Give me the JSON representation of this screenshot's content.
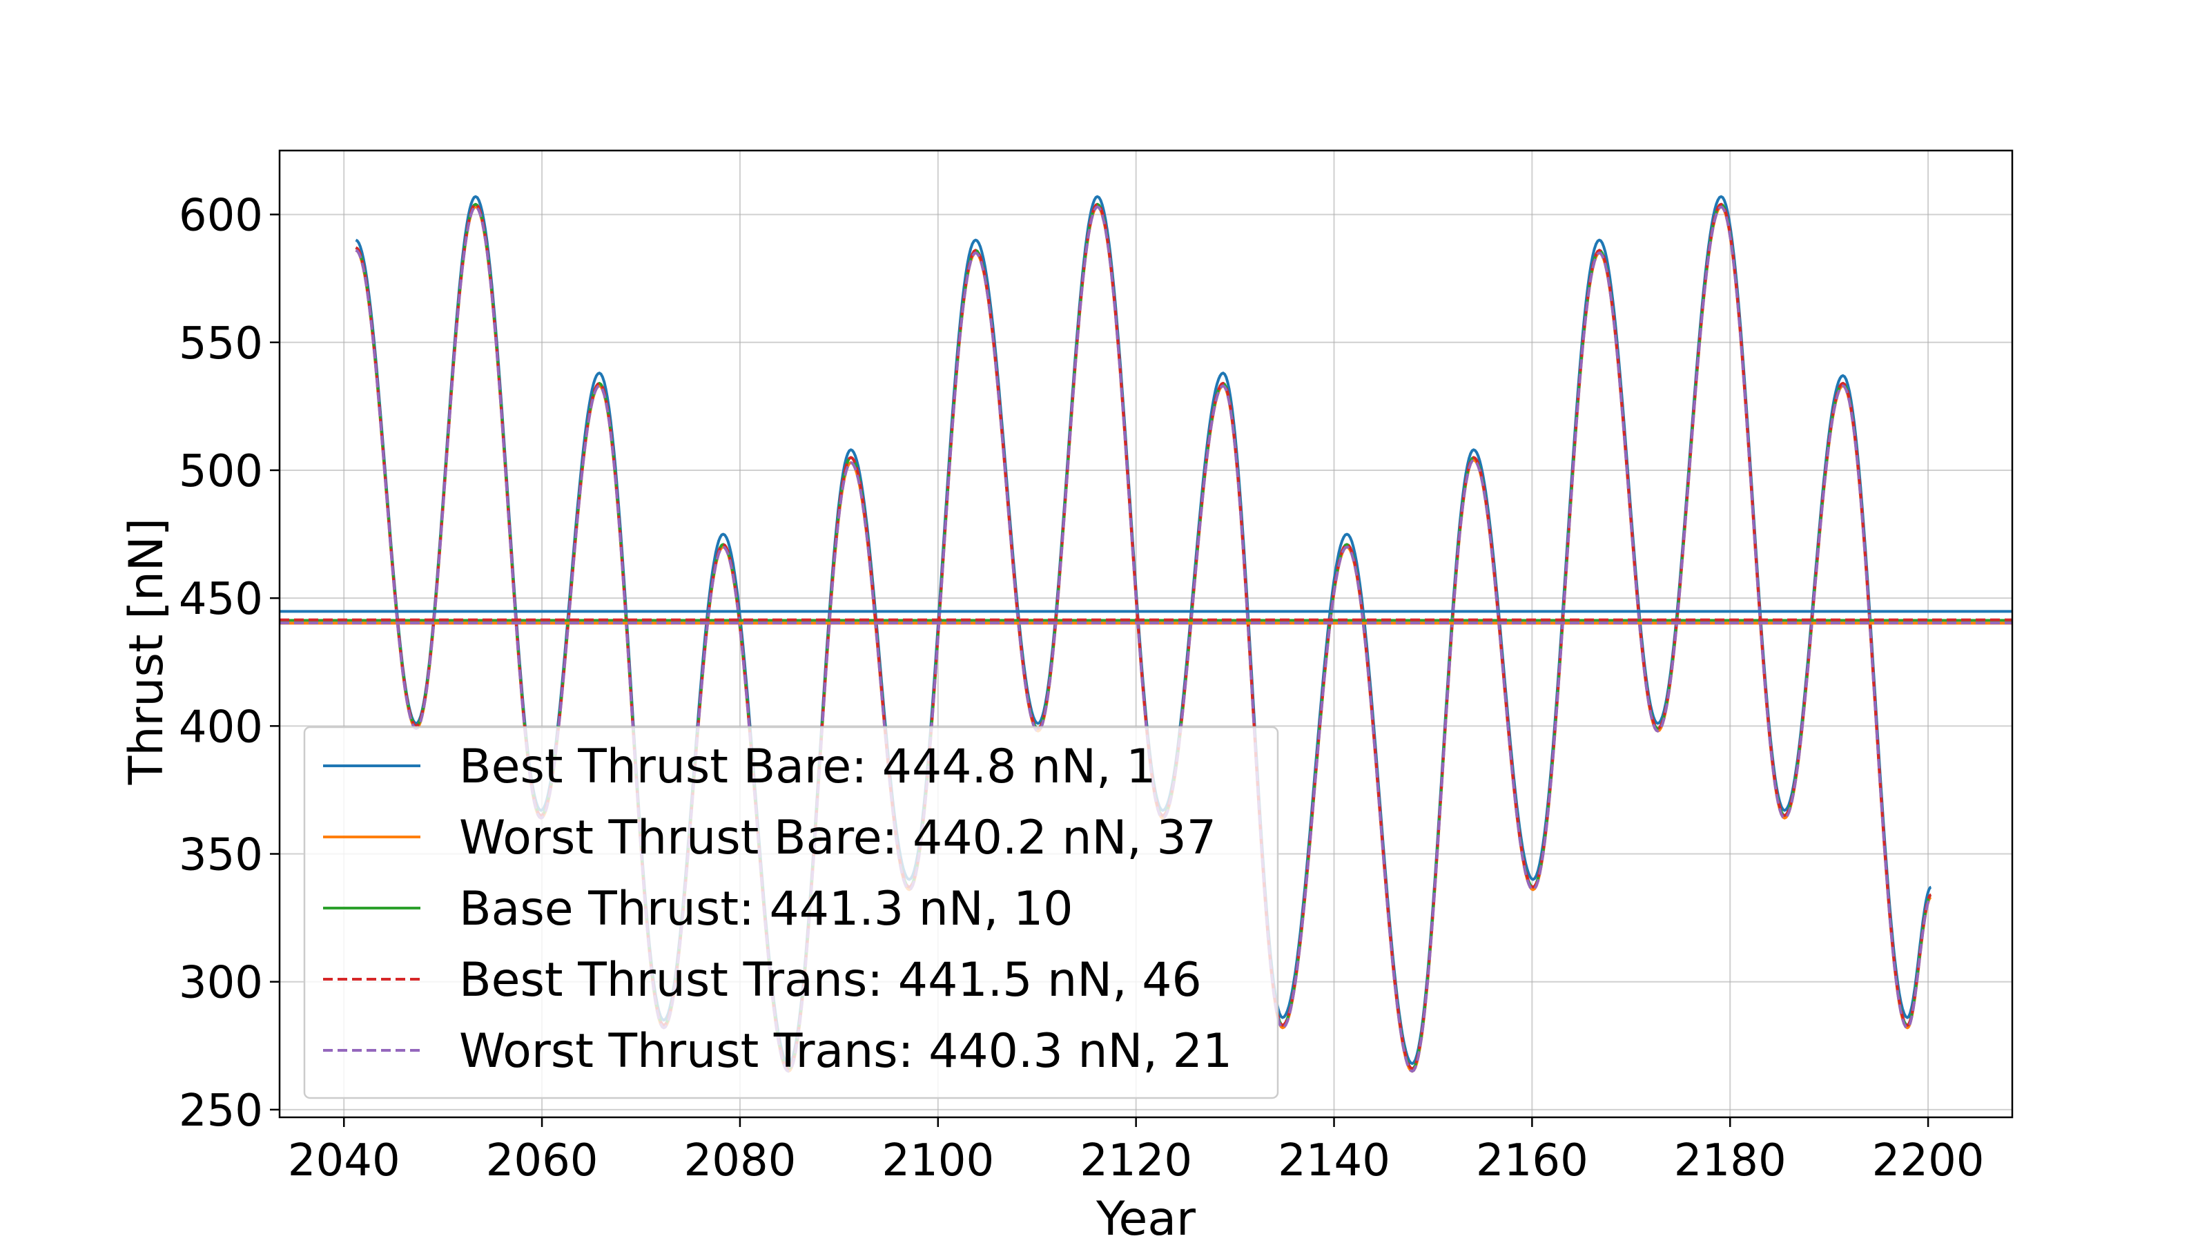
{
  "chart_data": {
    "type": "line",
    "title": "",
    "xlabel": "Year",
    "ylabel": "Thrust [nN]",
    "xlim": [
      2033.5,
      2208.5
    ],
    "ylim": [
      247,
      625
    ],
    "xticks": [
      2040,
      2060,
      2080,
      2100,
      2120,
      2140,
      2160,
      2180,
      2200
    ],
    "yticks": [
      250,
      300,
      350,
      400,
      450,
      500,
      550,
      600
    ],
    "grid": true,
    "legend_position": "lower-left",
    "colors": {
      "best_bare": "#1f77b4",
      "worst_bare": "#ff7f0e",
      "base": "#2ca02c",
      "best_trans": "#d62728",
      "worst_trans": "#9467bd"
    },
    "series": [
      {
        "name": "Best Thrust Bare: 444.8 nN, 1",
        "style": "solid",
        "color": "#1f77b4",
        "mean": 444.8,
        "scale": 1.007,
        "x": [
          2041.2,
          2047.3,
          2053.3,
          2059.9,
          2065.8,
          2072.3,
          2078.3,
          2084.9,
          2091.2,
          2097.1,
          2103.8,
          2110.1,
          2116.1,
          2122.7,
          2128.8,
          2134.8,
          2141.3,
          2147.9,
          2154.1,
          2160.1,
          2166.8,
          2172.7,
          2179.1,
          2185.5,
          2191.4,
          2197.9,
          2200.3
        ],
        "y": [
          590,
          401,
          607,
          367,
          538,
          285,
          475,
          268,
          508,
          340,
          590,
          401,
          607,
          367,
          538,
          286,
          475,
          268,
          508,
          340,
          590,
          401,
          607,
          367,
          537,
          286,
          337
        ]
      },
      {
        "name": "Worst Thrust Bare: 440.2 nN, 37",
        "style": "solid",
        "color": "#ff7f0e",
        "mean": 440.2,
        "scale": 0.996,
        "x": [
          2041.2,
          2047.3,
          2053.3,
          2059.9,
          2065.8,
          2072.3,
          2078.3,
          2084.9,
          2091.2,
          2097.1,
          2103.8,
          2110.1,
          2116.1,
          2122.7,
          2128.8,
          2134.8,
          2141.3,
          2147.9,
          2154.1,
          2160.1,
          2166.8,
          2172.7,
          2179.1,
          2185.5,
          2191.4,
          2197.9,
          2200.3
        ],
        "y": [
          586,
          399,
          603,
          364,
          533,
          282,
          470,
          265,
          503,
          336,
          585,
          398,
          603,
          364,
          533,
          282,
          470,
          265,
          504,
          336,
          585,
          398,
          603,
          364,
          533,
          282,
          333
        ]
      },
      {
        "name": "Base Thrust: 441.3 nN, 10",
        "style": "solid",
        "color": "#2ca02c",
        "mean": 441.3,
        "scale": 0.999,
        "x": [
          2041.2,
          2047.3,
          2053.3,
          2059.9,
          2065.8,
          2072.3,
          2078.3,
          2084.9,
          2091.2,
          2097.1,
          2103.8,
          2110.1,
          2116.1,
          2122.7,
          2128.8,
          2134.8,
          2141.3,
          2147.9,
          2154.1,
          2160.1,
          2166.8,
          2172.7,
          2179.1,
          2185.5,
          2191.4,
          2197.9,
          2200.3
        ],
        "y": [
          587,
          400,
          604,
          365,
          534,
          283,
          471,
          266,
          505,
          337,
          586,
          399,
          604,
          365,
          534,
          283,
          471,
          266,
          505,
          337,
          586,
          399,
          604,
          365,
          534,
          283,
          334
        ]
      },
      {
        "name": "Best Thrust Trans: 441.5 nN, 46",
        "style": "dashed",
        "color": "#d62728",
        "mean": 441.5,
        "scale": 1.0,
        "x": [
          2041.2,
          2047.3,
          2053.3,
          2059.9,
          2065.8,
          2072.3,
          2078.3,
          2084.9,
          2091.2,
          2097.1,
          2103.8,
          2110.1,
          2116.1,
          2122.7,
          2128.8,
          2134.8,
          2141.3,
          2147.9,
          2154.1,
          2160.1,
          2166.8,
          2172.7,
          2179.1,
          2185.5,
          2191.4,
          2197.9,
          2200.3
        ],
        "y": [
          587,
          400,
          604,
          365,
          534,
          283,
          471,
          266,
          505,
          337,
          586,
          399,
          604,
          365,
          534,
          283,
          471,
          266,
          505,
          337,
          586,
          399,
          604,
          365,
          534,
          283,
          334
        ]
      },
      {
        "name": "Worst Thrust Trans: 440.3 nN, 21",
        "style": "dashed",
        "color": "#9467bd",
        "mean": 440.3,
        "scale": 0.997,
        "x": [
          2041.2,
          2047.3,
          2053.3,
          2059.9,
          2065.8,
          2072.3,
          2078.3,
          2084.9,
          2091.2,
          2097.1,
          2103.8,
          2110.1,
          2116.1,
          2122.7,
          2128.8,
          2134.8,
          2141.3,
          2147.9,
          2154.1,
          2160.1,
          2166.8,
          2172.7,
          2179.1,
          2185.5,
          2191.4,
          2197.9,
          2200.3
        ],
        "y": [
          586,
          399,
          603,
          364,
          533,
          282,
          470,
          265,
          503,
          336,
          585,
          398,
          603,
          364,
          533,
          282,
          470,
          265,
          504,
          336,
          585,
          398,
          603,
          364,
          533,
          282,
          333
        ]
      }
    ]
  }
}
